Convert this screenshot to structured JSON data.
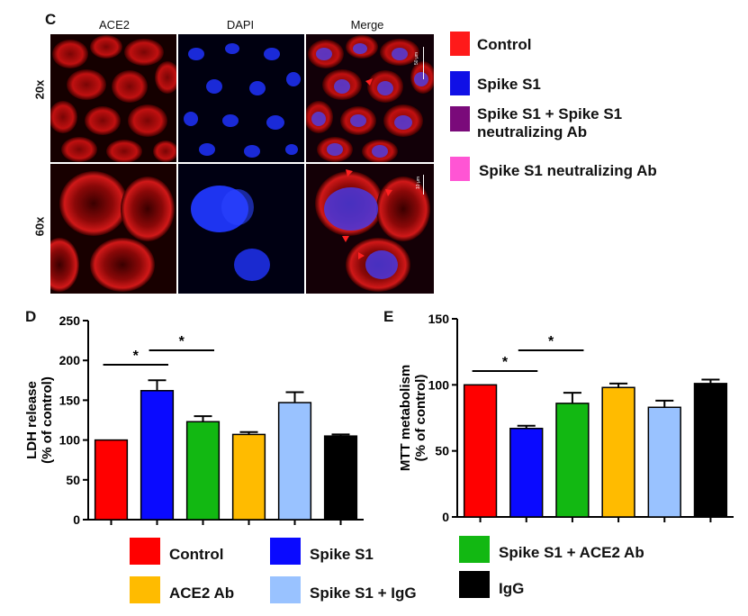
{
  "panel_c": {
    "letter": "C",
    "columns": [
      "ACE2",
      "DAPI",
      "Merge"
    ],
    "rows": [
      "20x",
      "60x"
    ],
    "scale_bars": [
      "50 μm",
      "10 μm"
    ],
    "legend": [
      {
        "label": "Control",
        "color": "#ff1a1a"
      },
      {
        "label": "Spike S1",
        "color": "#1010e6"
      },
      {
        "label": "Spike S1 + Spike S1 neutralizing Ab",
        "color": "#7a0a7a"
      },
      {
        "label": "Spike S1 neutralizing Ab",
        "color": "#ff55d4"
      }
    ]
  },
  "legend_bottom": [
    {
      "label": "Control",
      "color": "#ff0000"
    },
    {
      "label": "Spike S1",
      "color": "#0a0aff"
    },
    {
      "label": "Spike S1 + ACE2 Ab",
      "color": "#12b812"
    },
    {
      "label": "ACE2 Ab",
      "color": "#ffbb00"
    },
    {
      "label": "Spike S1 + IgG",
      "color": "#99c2ff"
    },
    {
      "label": "IgG",
      "color": "#000000"
    }
  ],
  "chart_data": [
    {
      "type": "bar",
      "panel": "D",
      "categories": [
        "Control",
        "Spike S1",
        "Spike S1 + ACE2 Ab",
        "ACE2 Ab",
        "Spike S1 + IgG",
        "IgG"
      ],
      "values": [
        100,
        162,
        123,
        107,
        147,
        105
      ],
      "errors": [
        0,
        13,
        7,
        3,
        13,
        2
      ],
      "colors": [
        "#ff0000",
        "#0a0aff",
        "#12b812",
        "#ffbb00",
        "#99c2ff",
        "#000000"
      ],
      "ylabel": "LDH release\n(% of control)",
      "ylim": [
        0,
        250
      ],
      "yticks": [
        0,
        50,
        100,
        150,
        200,
        250
      ],
      "significance": [
        {
          "from": 0,
          "to": 1,
          "label": "*"
        },
        {
          "from": 1,
          "to": 2,
          "label": "*"
        }
      ]
    },
    {
      "type": "bar",
      "panel": "E",
      "categories": [
        "Control",
        "Spike S1",
        "Spike S1 + ACE2 Ab",
        "ACE2 Ab",
        "Spike S1 + IgG",
        "IgG"
      ],
      "values": [
        100,
        67,
        86,
        98,
        83,
        101
      ],
      "errors": [
        0,
        2,
        8,
        3,
        5,
        3
      ],
      "colors": [
        "#ff0000",
        "#0a0aff",
        "#12b812",
        "#ffbb00",
        "#99c2ff",
        "#000000"
      ],
      "ylabel": "MTT metabolism\n(% of control)",
      "ylim": [
        0,
        150
      ],
      "yticks": [
        0,
        50,
        100,
        150
      ],
      "significance": [
        {
          "from": 0,
          "to": 1,
          "label": "*"
        },
        {
          "from": 1,
          "to": 2,
          "label": "*"
        }
      ]
    }
  ]
}
